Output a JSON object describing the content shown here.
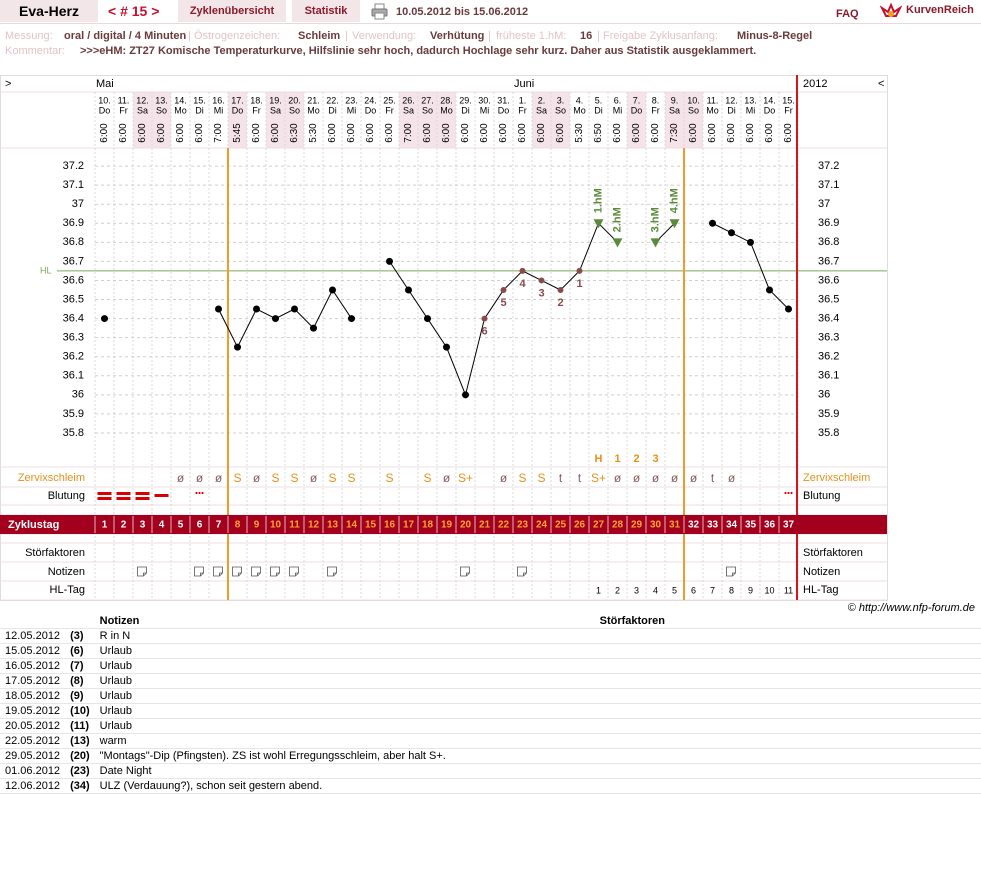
{
  "header": {
    "title": "Eva-Herz",
    "cycle_nav": "< # 15 >",
    "tabs": [
      "Zyklenübersicht",
      "Statistik"
    ],
    "date_range": "10.05.2012 bis 15.06.2012",
    "faq": "FAQ",
    "logo": "KurvenReich"
  },
  "info": {
    "fields": [
      {
        "label": "Messung:",
        "value": "oral / digital / 4 Minuten"
      },
      {
        "label": "Östrogenzeichen:",
        "value": "Schleim"
      },
      {
        "label": "Verwendung:",
        "value": "Verhütung"
      },
      {
        "label": "früheste 1.hM:",
        "value": "16"
      },
      {
        "label": "Freigabe Zyklusanfang:",
        "value": "Minus-8-Regel"
      }
    ],
    "comment_label": "Kommentar:",
    "comment": ">>>eHM: ZT27 Komische Temperaturkurve, Hilfslinie sehr hoch, dadurch Hochlage sehr kurz. Daher aus Statistik ausgeklammert."
  },
  "chart_data": {
    "type": "line",
    "nav_left": ">",
    "nav_right": "<",
    "year": "2012",
    "month_labels": [
      "Mai",
      null,
      null,
      null,
      null,
      null,
      null,
      null,
      null,
      null,
      null,
      null,
      null,
      null,
      null,
      null,
      null,
      null,
      null,
      null,
      null,
      null,
      "Juni",
      null,
      null,
      null,
      null,
      null,
      null,
      null,
      null,
      null,
      null,
      null,
      null,
      null,
      null
    ],
    "categories": [
      "10.",
      "11.",
      "12.",
      "13.",
      "14.",
      "15.",
      "16.",
      "17.",
      "18.",
      "19.",
      "20.",
      "21.",
      "22.",
      "23.",
      "24.",
      "25.",
      "26.",
      "27.",
      "28.",
      "29.",
      "30.",
      "31.",
      "1.",
      "2.",
      "3.",
      "4.",
      "5.",
      "6.",
      "7.",
      "8.",
      "9.",
      "10.",
      "11.",
      "12.",
      "13.",
      "14.",
      "15."
    ],
    "weekdays": [
      "Do",
      "Fr",
      "Sa",
      "So",
      "Mo",
      "Di",
      "Mi",
      "Do",
      "Fr",
      "Sa",
      "So",
      "Mo",
      "Di",
      "Mi",
      "Do",
      "Fr",
      "Sa",
      "So",
      "Mo",
      "Di",
      "Mi",
      "Do",
      "Fr",
      "Sa",
      "So",
      "Mo",
      "Di",
      "Mi",
      "Do",
      "Fr",
      "Sa",
      "So",
      "Mo",
      "Di",
      "Mi",
      "Do",
      "Fr"
    ],
    "times": [
      "6:00",
      "6:00",
      "6:00",
      "6:00",
      "6:00",
      "6:00",
      "7:00",
      "5:45",
      "6:00",
      "6:00",
      "6:30",
      "5:30",
      "6:00",
      "6:00",
      "6:00",
      "6:00",
      "7:00",
      "6:00",
      "6:00",
      "6:00",
      "6:00",
      "6:00",
      "6:00",
      "6:00",
      "6:00",
      "5:30",
      "6:50",
      "6:00",
      "6:00",
      "6:00",
      "7:30",
      "6:00",
      "6:00",
      "6:00",
      "6:00",
      "6:00",
      "6:00"
    ],
    "values": [
      36.4,
      null,
      null,
      null,
      null,
      null,
      36.45,
      36.25,
      36.45,
      36.4,
      36.45,
      36.35,
      36.55,
      36.4,
      null,
      36.7,
      36.55,
      36.4,
      36.25,
      36,
      36.4,
      36.55,
      36.65,
      36.6,
      36.55,
      36.65,
      36.9,
      36.8,
      null,
      36.8,
      36.9,
      null,
      36.9,
      36.85,
      36.8,
      36.55,
      36.45
    ],
    "lower_labels": [
      null,
      null,
      null,
      null,
      null,
      null,
      null,
      null,
      null,
      null,
      null,
      null,
      null,
      null,
      null,
      null,
      null,
      null,
      null,
      null,
      "6",
      "5",
      "4",
      "3",
      "2",
      "1",
      null,
      null,
      null,
      null,
      null,
      null,
      null,
      null,
      null,
      null,
      null
    ],
    "hm_labels": [
      null,
      null,
      null,
      null,
      null,
      null,
      null,
      null,
      null,
      null,
      null,
      null,
      null,
      null,
      null,
      null,
      null,
      null,
      null,
      null,
      null,
      null,
      null,
      null,
      null,
      null,
      "1.hM",
      "2.hM",
      null,
      "3.hM",
      "4.hM",
      null,
      null,
      null,
      null,
      null,
      null
    ],
    "fertility_labels": [
      null,
      null,
      null,
      null,
      null,
      null,
      null,
      null,
      null,
      null,
      null,
      null,
      null,
      null,
      null,
      null,
      null,
      null,
      null,
      null,
      null,
      null,
      null,
      null,
      null,
      null,
      "H",
      "1",
      "2",
      "3",
      null,
      null,
      null,
      null,
      null,
      null,
      null
    ],
    "ylim": [
      35.7,
      37.3
    ],
    "yticks": [
      35.8,
      35.9,
      36,
      36.1,
      36.2,
      36.3,
      36.4,
      36.5,
      36.6,
      36.7,
      36.8,
      36.9,
      37,
      37.1,
      37.2
    ],
    "hl_line": 36.65,
    "hl_label": "HL",
    "row_labels": {
      "mucus": "Zervixschleim",
      "bleeding": "Blutung",
      "cycle_day": "Zyklustag",
      "disturbances": "Störfaktoren",
      "notes": "Notizen",
      "hl_day": "HL-Tag"
    },
    "mucus": [
      null,
      null,
      null,
      null,
      "ø",
      "ø",
      "ø",
      "S",
      "ø",
      "S",
      "S",
      "ø",
      "S",
      "S",
      null,
      "S",
      null,
      "S",
      "ø",
      "S+",
      null,
      "ø",
      "S",
      "S",
      "t",
      "t",
      "S+",
      "ø",
      "ø",
      "ø",
      "ø",
      "ø",
      "t",
      "ø",
      null,
      null,
      null
    ],
    "mucus_colors": {
      "S": "#e8901a",
      "S+": "#e8901a"
    },
    "bleeding": [
      3,
      3,
      3,
      2,
      null,
      1,
      null,
      null,
      null,
      null,
      null,
      null,
      null,
      null,
      null,
      null,
      null,
      null,
      null,
      null,
      null,
      null,
      null,
      null,
      null,
      null,
      null,
      null,
      null,
      null,
      null,
      null,
      null,
      null,
      null,
      null,
      1
    ],
    "cycle_days": [
      1,
      2,
      3,
      4,
      5,
      6,
      7,
      8,
      9,
      10,
      11,
      12,
      13,
      14,
      15,
      16,
      17,
      18,
      19,
      20,
      21,
      22,
      23,
      24,
      25,
      26,
      27,
      28,
      29,
      30,
      31,
      32,
      33,
      34,
      35,
      36,
      37
    ],
    "hl_days": [
      null,
      null,
      null,
      null,
      null,
      null,
      null,
      null,
      null,
      null,
      null,
      null,
      null,
      null,
      null,
      null,
      null,
      null,
      null,
      null,
      null,
      null,
      null,
      null,
      null,
      null,
      1,
      2,
      3,
      4,
      5,
      6,
      7,
      8,
      9,
      10,
      11
    ],
    "shaded": [
      2,
      3,
      7,
      9,
      10,
      16,
      17,
      18,
      23,
      24,
      28,
      30,
      31
    ],
    "grid": true,
    "colors": {
      "line": "#000000",
      "point": "#000000",
      "lower": "#8b4a4a",
      "hm": "#5a8a3a",
      "hl": "#7aa85a",
      "bleeding": "#d80000",
      "cycle_bar": "#a3001e",
      "fertile_day": "#ffa530",
      "day": "#ffffff",
      "shade": "#f4e4e9"
    }
  },
  "notes_table": {
    "headers": [
      "Notizen",
      "Störfaktoren"
    ],
    "rows": [
      {
        "date": "12.05.2012",
        "day": {
          "value": 3,
          "label": "(3)"
        },
        "note": "R in N"
      },
      {
        "date": "15.05.2012",
        "day": {
          "value": 6,
          "label": "(6)"
        },
        "note": "Urlaub"
      },
      {
        "date": "16.05.2012",
        "day": {
          "value": 7,
          "label": "(7)"
        },
        "note": "Urlaub"
      },
      {
        "date": "17.05.2012",
        "day": {
          "value": 8,
          "label": "(8)"
        },
        "note": "Urlaub"
      },
      {
        "date": "18.05.2012",
        "day": {
          "value": 9,
          "label": "(9)"
        },
        "note": "Urlaub"
      },
      {
        "date": "19.05.2012",
        "day": {
          "value": 10,
          "label": "(10)"
        },
        "note": "Urlaub"
      },
      {
        "date": "20.05.2012",
        "day": {
          "value": 11,
          "label": "(11)"
        },
        "note": "Urlaub"
      },
      {
        "date": "22.05.2012",
        "day": {
          "value": 13,
          "label": "(13)"
        },
        "note": "warm"
      },
      {
        "date": "29.05.2012",
        "day": {
          "value": 20,
          "label": "(20)"
        },
        "note": "\"Montags\"-Dip (Pfingsten). ZS ist wohl Erregungsschleim, aber halt S+."
      },
      {
        "date": "01.06.2012",
        "day": {
          "value": 23,
          "label": "(23)"
        },
        "note": "Date Night"
      },
      {
        "date": "12.06.2012",
        "day": {
          "value": 34,
          "label": "(34)"
        },
        "note": "ULZ (Verdauung?), schon seit gestern abend."
      }
    ]
  },
  "copyright": "© http://www.nfp-forum.de"
}
